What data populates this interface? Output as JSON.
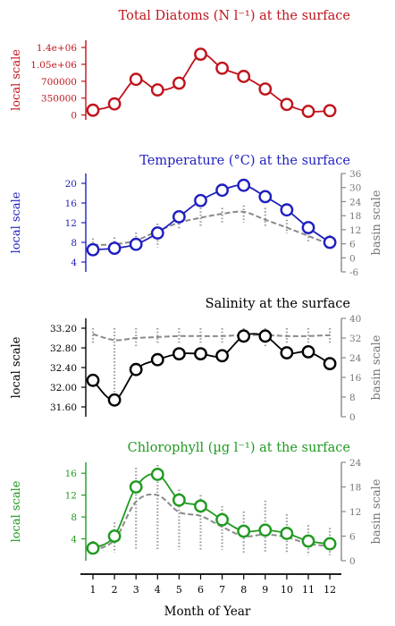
{
  "figure": {
    "xlabel": "Month of Year",
    "month_ticks": [
      "1",
      "2",
      "3",
      "4",
      "5",
      "6",
      "7",
      "8",
      "9",
      "10",
      "11",
      "12"
    ]
  },
  "chart_data": [
    {
      "id": "diatoms",
      "type": "line",
      "title": "Total Diatoms (N l⁻¹) at the surface",
      "ylabel_left": "local scale",
      "ylabel_right": "",
      "color": "#c0141c",
      "left_ticks": [
        {
          "label": "1.4e+06",
          "value": 1400000
        },
        {
          "label": "1.05e+06",
          "value": 1050000
        },
        {
          "label": "700000",
          "value": 700000
        },
        {
          "label": "350000",
          "value": 350000
        },
        {
          "label": "0",
          "value": 0
        }
      ],
      "left_range": [
        -100000,
        1550000
      ],
      "right_ticks": [],
      "x": [
        1,
        2,
        3,
        4,
        5,
        6,
        7,
        8,
        9,
        10,
        11,
        12
      ],
      "series": [
        {
          "name": "",
          "values": [
            100000,
            230000,
            740000,
            520000,
            660000,
            1260000,
            970000,
            800000,
            540000,
            220000,
            75000,
            90000
          ]
        }
      ],
      "basin_mean": [],
      "basin_range": []
    },
    {
      "id": "temperature",
      "type": "line",
      "title": "Temperature (°C) at the surface",
      "ylabel_left": "local scale",
      "ylabel_right": "basin scale",
      "color": "#1f1fbf",
      "left_ticks": [
        {
          "label": "20",
          "value": 20
        },
        {
          "label": "16",
          "value": 16
        },
        {
          "label": "12",
          "value": 12
        },
        {
          "label": "8",
          "value": 8
        },
        {
          "label": "4",
          "value": 4
        }
      ],
      "left_range": [
        2,
        22
      ],
      "right_ticks": [
        {
          "label": "36",
          "value": 36
        },
        {
          "label": "30",
          "value": 30
        },
        {
          "label": "24",
          "value": 24
        },
        {
          "label": "18",
          "value": 18
        },
        {
          "label": "12",
          "value": 12
        },
        {
          "label": "6",
          "value": 6
        },
        {
          "label": "0",
          "value": 0
        },
        {
          "label": "-6",
          "value": -6
        }
      ],
      "right_range": [
        -6,
        36
      ],
      "x": [
        1,
        2,
        3,
        4,
        5,
        6,
        7,
        8,
        9,
        10,
        11,
        12
      ],
      "series": [
        {
          "name": "",
          "values": [
            6.5,
            6.8,
            7.6,
            9.9,
            13.2,
            16.5,
            18.6,
            19.6,
            17.3,
            14.6,
            11.0,
            8.0
          ]
        }
      ],
      "basin_mean": [
        7.5,
        7.6,
        8.4,
        10.3,
        12.0,
        13.0,
        13.8,
        14.2,
        12.6,
        11.0,
        9.3,
        7.6
      ],
      "basin_range": [
        [
          6.2,
          8.8
        ],
        [
          6.2,
          9.0
        ],
        [
          6.8,
          10.0
        ],
        [
          7.0,
          11.8
        ],
        [
          10.5,
          14.5
        ],
        [
          11.0,
          15.0
        ],
        [
          12.0,
          15.0
        ],
        [
          12.0,
          15.5
        ],
        [
          11.0,
          15.0
        ],
        [
          9.8,
          12.6
        ],
        [
          8.0,
          10.5
        ],
        [
          6.8,
          9.5
        ]
      ]
    },
    {
      "id": "salinity",
      "type": "line",
      "title": "Salinity at the surface",
      "ylabel_left": "local scale",
      "ylabel_right": "basin scale",
      "color": "#000000",
      "left_ticks": [
        {
          "label": "33.20",
          "value": 33.2
        },
        {
          "label": "32.80",
          "value": 32.8
        },
        {
          "label": "32.40",
          "value": 32.4
        },
        {
          "label": "32.00",
          "value": 32.0
        },
        {
          "label": "31.60",
          "value": 31.6
        }
      ],
      "left_range": [
        31.4,
        33.4
      ],
      "right_ticks": [
        {
          "label": "40",
          "value": 40
        },
        {
          "label": "32",
          "value": 32
        },
        {
          "label": "24",
          "value": 24
        },
        {
          "label": "16",
          "value": 16
        },
        {
          "label": "8",
          "value": 8
        },
        {
          "label": "0",
          "value": 0
        }
      ],
      "right_range": [
        0,
        40
      ],
      "x": [
        1,
        2,
        3,
        4,
        5,
        6,
        7,
        8,
        9,
        10,
        11,
        12
      ],
      "series": [
        {
          "name": "",
          "values": [
            32.14,
            31.74,
            32.36,
            32.56,
            32.68,
            32.68,
            32.64,
            33.04,
            33.04,
            32.7,
            32.72,
            32.48
          ]
        }
      ],
      "basin_mean": [
        33.08,
        32.96,
        33.0,
        33.02,
        33.04,
        33.04,
        33.04,
        33.06,
        33.06,
        33.04,
        33.04,
        33.06
      ],
      "basin_range": [
        [
          32.9,
          33.2
        ],
        [
          31.9,
          33.2
        ],
        [
          32.8,
          33.2
        ],
        [
          32.9,
          33.2
        ],
        [
          32.9,
          33.2
        ],
        [
          32.9,
          33.2
        ],
        [
          32.9,
          33.2
        ],
        [
          32.9,
          33.2
        ],
        [
          32.8,
          33.2
        ],
        [
          32.9,
          33.2
        ],
        [
          32.9,
          33.2
        ],
        [
          32.9,
          33.2
        ]
      ]
    },
    {
      "id": "chlorophyll",
      "type": "line",
      "title": "Chlorophyll (µg l⁻¹) at the surface",
      "ylabel_left": "local scale",
      "ylabel_right": "basin scale",
      "color": "#1f9a1f",
      "left_ticks": [
        {
          "label": "16",
          "value": 16
        },
        {
          "label": "12",
          "value": 12
        },
        {
          "label": "8",
          "value": 8
        },
        {
          "label": "4",
          "value": 4
        }
      ],
      "left_range": [
        0,
        18
      ],
      "right_ticks": [
        {
          "label": "24",
          "value": 24
        },
        {
          "label": "18",
          "value": 18
        },
        {
          "label": "12",
          "value": 12
        },
        {
          "label": "6",
          "value": 6
        },
        {
          "label": "0",
          "value": 0
        }
      ],
      "right_range": [
        0,
        24
      ],
      "x": [
        1,
        2,
        3,
        4,
        5,
        6,
        7,
        8,
        9,
        10,
        11,
        12
      ],
      "series": [
        {
          "name": "",
          "values": [
            2.3,
            4.5,
            13.5,
            15.8,
            11.1,
            10.0,
            7.5,
            5.4,
            5.6,
            5.0,
            3.6,
            3.1
          ]
        }
      ],
      "basin_mean": [
        1.9,
        3.8,
        10.8,
        12.0,
        8.9,
        8.2,
        6.2,
        4.5,
        4.8,
        4.3,
        3.1,
        2.7
      ],
      "basin_range": [
        [
          1.2,
          3.6
        ],
        [
          1.5,
          7.0
        ],
        [
          2.0,
          17.0
        ],
        [
          2.0,
          17.5
        ],
        [
          2.0,
          13.0
        ],
        [
          2.0,
          12.0
        ],
        [
          2.0,
          10.0
        ],
        [
          1.5,
          9.0
        ],
        [
          1.5,
          11.0
        ],
        [
          1.5,
          8.5
        ],
        [
          1.0,
          6.5
        ],
        [
          1.0,
          6.0
        ]
      ]
    }
  ]
}
